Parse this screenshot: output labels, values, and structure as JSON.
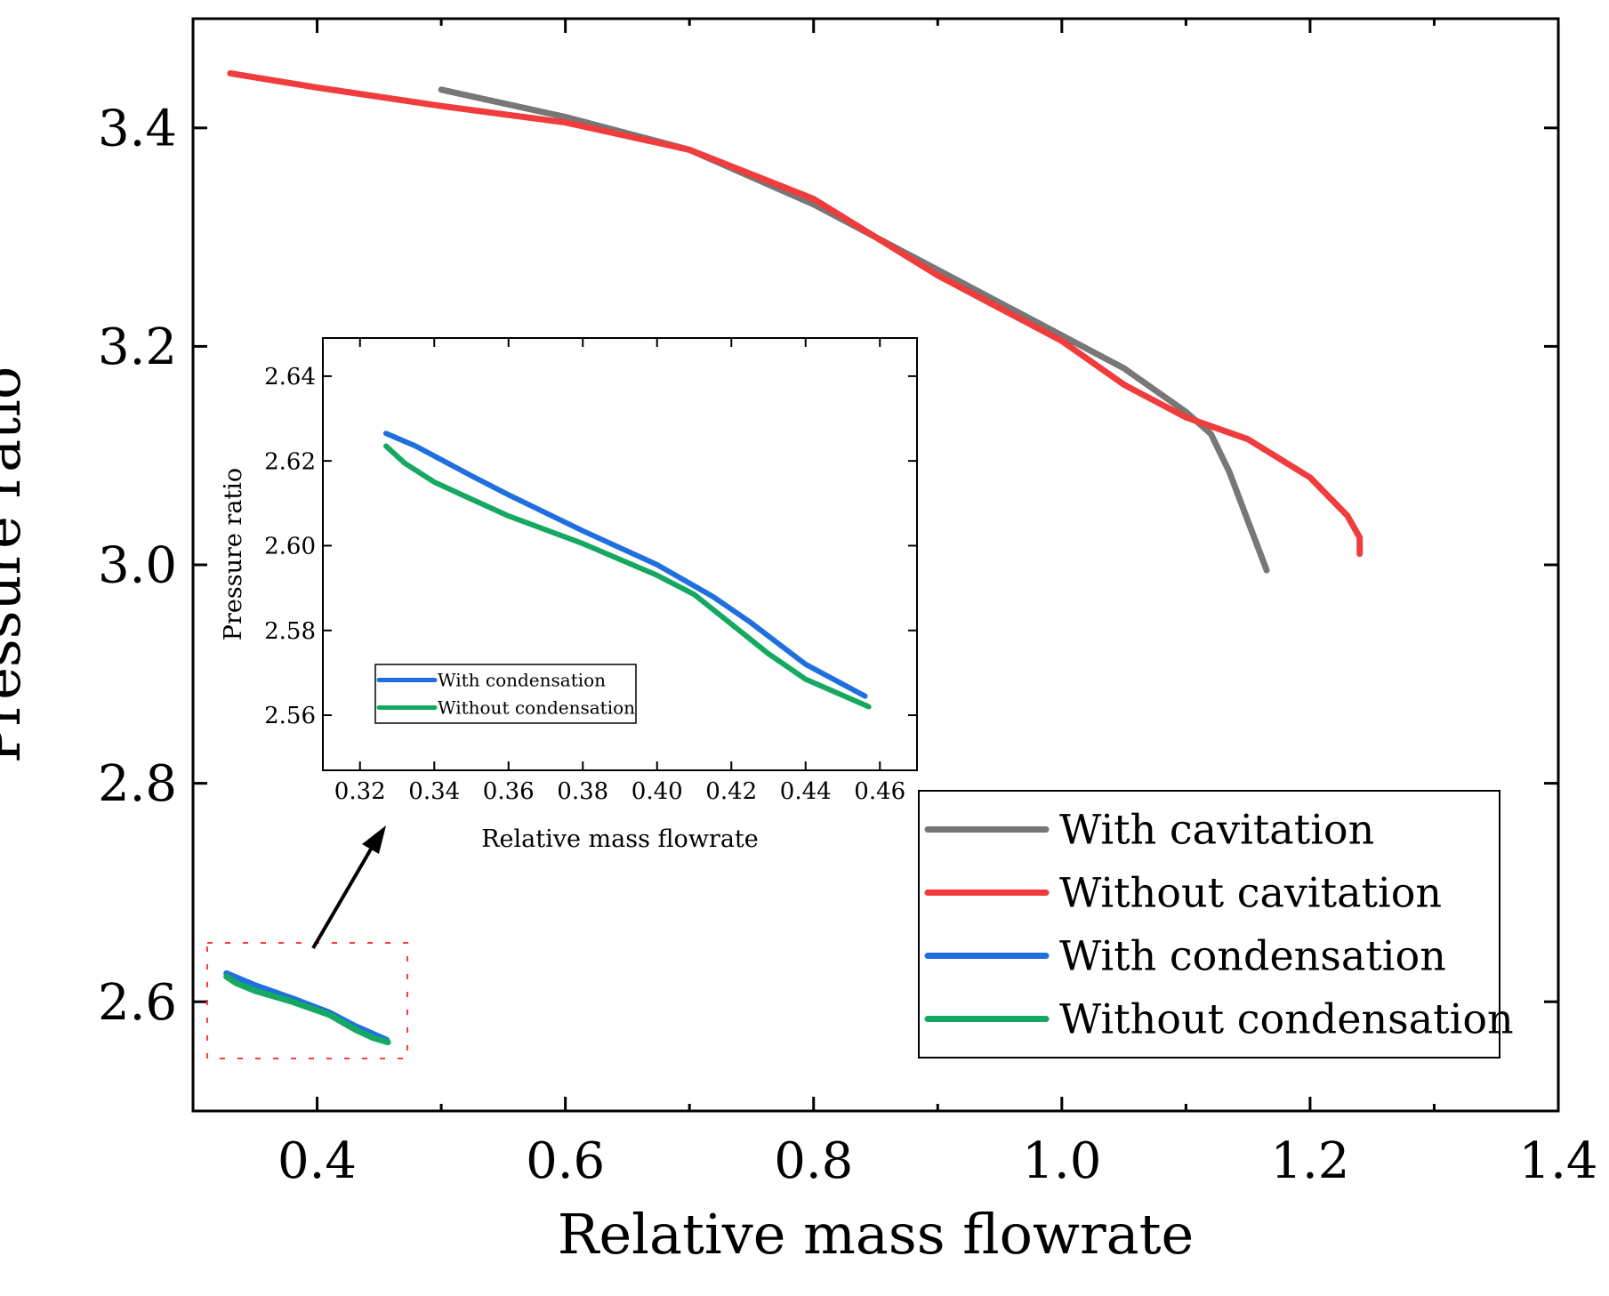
{
  "chart_data": [
    {
      "id": "main",
      "type": "line",
      "xlabel": "Relative mass flowrate",
      "ylabel": "Pressure ratio",
      "xlim": [
        0.3,
        1.4
      ],
      "ylim": [
        2.5,
        3.5
      ],
      "xticks": [
        0.4,
        0.6,
        0.8,
        1.0,
        1.2,
        1.4
      ],
      "xtick_labels": [
        "0.4",
        "0.6",
        "0.8",
        "1.0",
        "1.2",
        "1.4"
      ],
      "yticks": [
        2.6,
        2.8,
        3.0,
        3.2,
        3.4
      ],
      "ytick_labels": [
        "2.6",
        "2.8",
        "3.0",
        "3.2",
        "3.4"
      ],
      "legend_position": "bottom-right",
      "series": [
        {
          "name": "With cavitation",
          "color": "#777777",
          "points": [
            [
              0.5,
              3.435
            ],
            [
              0.6,
              3.41
            ],
            [
              0.7,
              3.38
            ],
            [
              0.8,
              3.33
            ],
            [
              0.9,
              3.27
            ],
            [
              1.0,
              3.21
            ],
            [
              1.05,
              3.18
            ],
            [
              1.1,
              3.14
            ],
            [
              1.12,
              3.12
            ],
            [
              1.135,
              3.085
            ],
            [
              1.15,
              3.04
            ],
            [
              1.165,
              2.995
            ]
          ]
        },
        {
          "name": "Without cavitation",
          "color": "#f03c3c",
          "points": [
            [
              0.33,
              3.45
            ],
            [
              0.4,
              3.437
            ],
            [
              0.5,
              3.42
            ],
            [
              0.6,
              3.405
            ],
            [
              0.7,
              3.38
            ],
            [
              0.8,
              3.335
            ],
            [
              0.9,
              3.265
            ],
            [
              1.0,
              3.205
            ],
            [
              1.05,
              3.165
            ],
            [
              1.1,
              3.135
            ],
            [
              1.15,
              3.115
            ],
            [
              1.2,
              3.08
            ],
            [
              1.23,
              3.045
            ],
            [
              1.24,
              3.025
            ],
            [
              1.24,
              3.01
            ]
          ]
        },
        {
          "name": "With condensation",
          "color": "#1f6fe0",
          "points": [
            [
              0.327,
              2.626
            ],
            [
              0.35,
              2.615
            ],
            [
              0.38,
              2.603
            ],
            [
              0.41,
              2.59
            ],
            [
              0.43,
              2.578
            ],
            [
              0.456,
              2.565
            ]
          ]
        },
        {
          "name": "Without condensation",
          "color": "#14a860",
          "points": [
            [
              0.327,
              2.623
            ],
            [
              0.335,
              2.617
            ],
            [
              0.35,
              2.61
            ],
            [
              0.38,
              2.6
            ],
            [
              0.41,
              2.588
            ],
            [
              0.43,
              2.575
            ],
            [
              0.445,
              2.567
            ],
            [
              0.457,
              2.563
            ]
          ]
        }
      ]
    },
    {
      "id": "inset",
      "type": "line",
      "xlabel": "Relative mass flowrate",
      "ylabel": "Pressure ratio",
      "xlim": [
        0.31,
        0.47
      ],
      "ylim": [
        2.547,
        2.649
      ],
      "xticks": [
        0.32,
        0.34,
        0.36,
        0.38,
        0.4,
        0.42,
        0.44,
        0.46
      ],
      "xtick_labels": [
        "0.32",
        "0.34",
        "0.36",
        "0.38",
        "0.40",
        "0.42",
        "0.44",
        "0.46"
      ],
      "yticks": [
        2.56,
        2.58,
        2.6,
        2.62,
        2.64
      ],
      "ytick_labels": [
        "2.56",
        "2.58",
        "2.60",
        "2.62",
        "2.64"
      ],
      "legend_position": "bottom-left",
      "series": [
        {
          "name": "With condensation",
          "color": "#1f6fe0",
          "points": [
            [
              0.327,
              2.6265
            ],
            [
              0.335,
              2.6235
            ],
            [
              0.35,
              2.6165
            ],
            [
              0.36,
              2.612
            ],
            [
              0.38,
              2.6035
            ],
            [
              0.4,
              2.5955
            ],
            [
              0.415,
              2.588
            ],
            [
              0.425,
              2.582
            ],
            [
              0.44,
              2.572
            ],
            [
              0.456,
              2.5645
            ]
          ]
        },
        {
          "name": "Without condensation",
          "color": "#14a860",
          "points": [
            [
              0.327,
              2.6235
            ],
            [
              0.332,
              2.6195
            ],
            [
              0.34,
              2.615
            ],
            [
              0.35,
              2.611
            ],
            [
              0.36,
              2.607
            ],
            [
              0.38,
              2.6005
            ],
            [
              0.4,
              2.593
            ],
            [
              0.41,
              2.5885
            ],
            [
              0.42,
              2.5815
            ],
            [
              0.43,
              2.5745
            ],
            [
              0.44,
              2.5685
            ],
            [
              0.457,
              2.562
            ]
          ]
        }
      ]
    }
  ]
}
